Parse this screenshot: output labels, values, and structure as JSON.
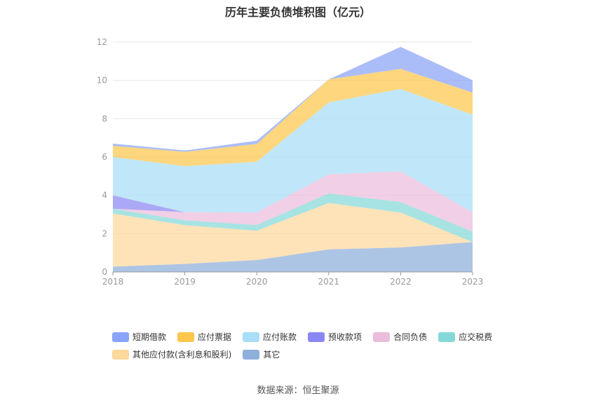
{
  "page_title": "历年主要负债堆积图（亿元）",
  "source": "数据来源：恒生聚源",
  "chart_data": {
    "type": "area",
    "stacked": true,
    "title": "历年主要负债堆积图（亿元）",
    "x": [
      "2018",
      "2019",
      "2020",
      "2021",
      "2022",
      "2023"
    ],
    "ylim": [
      0,
      12
    ],
    "yticks": [
      "0",
      "2",
      "4",
      "6",
      "8",
      "10",
      "12"
    ],
    "grid": true,
    "legend_position": "bottom",
    "series": [
      {
        "name": "其它",
        "color": "#8eaedb",
        "values": [
          0.28,
          0.42,
          0.62,
          1.18,
          1.28,
          1.56
        ]
      },
      {
        "name": "其他应付款(含利息和股利)",
        "color": "#fdd89c",
        "values": [
          2.77,
          2.02,
          1.53,
          2.42,
          1.82,
          0.0
        ]
      },
      {
        "name": "应交税费",
        "color": "#86d8d8",
        "values": [
          0.25,
          0.26,
          0.3,
          0.5,
          0.55,
          0.55
        ]
      },
      {
        "name": "合同负债",
        "color": "#ecbcdc",
        "values": [
          0.0,
          0.42,
          0.65,
          1.0,
          1.6,
          1.0
        ]
      },
      {
        "name": "预收款项",
        "color": "#8b87f2",
        "values": [
          0.7,
          0.0,
          0.0,
          0.0,
          0.0,
          0.0
        ]
      },
      {
        "name": "应付账款",
        "color": "#a8def7",
        "values": [
          2.0,
          2.4,
          2.65,
          3.75,
          4.3,
          5.1
        ]
      },
      {
        "name": "应付票据",
        "color": "#fdc64c",
        "values": [
          0.58,
          0.75,
          0.93,
          1.2,
          1.05,
          1.15
        ]
      },
      {
        "name": "短期借款",
        "color": "#8aa4f7",
        "values": [
          0.12,
          0.07,
          0.17,
          0.0,
          1.15,
          0.65
        ]
      }
    ],
    "legend_order": [
      "短期借款",
      "应付票据",
      "应付账款",
      "预收款项",
      "合同负债",
      "应交税费",
      "其他应付款(含利息和股利)",
      "其它"
    ]
  }
}
